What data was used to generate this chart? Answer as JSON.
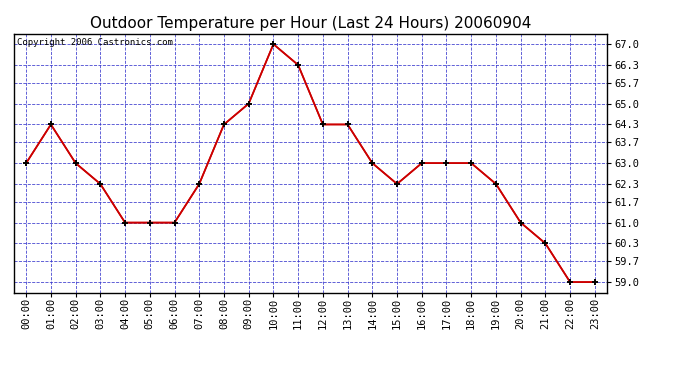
{
  "title": "Outdoor Temperature per Hour (Last 24 Hours) 20060904",
  "copyright_text": "Copyright 2006 Castronics.com",
  "hours": [
    0,
    1,
    2,
    3,
    4,
    5,
    6,
    7,
    8,
    9,
    10,
    11,
    12,
    13,
    14,
    15,
    16,
    17,
    18,
    19,
    20,
    21,
    22,
    23
  ],
  "x_labels": [
    "00:00",
    "01:00",
    "02:00",
    "03:00",
    "04:00",
    "05:00",
    "06:00",
    "07:00",
    "08:00",
    "09:00",
    "10:00",
    "11:00",
    "12:00",
    "13:00",
    "14:00",
    "15:00",
    "16:00",
    "17:00",
    "18:00",
    "19:00",
    "20:00",
    "21:00",
    "22:00",
    "23:00"
  ],
  "temperatures": [
    63.0,
    64.3,
    63.0,
    62.3,
    61.0,
    61.0,
    61.0,
    62.3,
    64.3,
    65.0,
    67.0,
    66.3,
    64.3,
    64.3,
    63.0,
    62.3,
    63.0,
    63.0,
    63.0,
    62.3,
    61.0,
    60.3,
    59.0,
    59.0
  ],
  "y_ticks": [
    59.0,
    59.7,
    60.3,
    61.0,
    61.7,
    62.3,
    63.0,
    63.7,
    64.3,
    65.0,
    65.7,
    66.3,
    67.0
  ],
  "ylim": [
    58.65,
    67.35
  ],
  "xlim": [
    -0.5,
    23.5
  ],
  "line_color": "#cc0000",
  "marker_color": "#000000",
  "plot_bg_color": "#ffffff",
  "grid_color": "#3333cc",
  "title_fontsize": 11,
  "copyright_fontsize": 6.5,
  "tick_fontsize": 7.5
}
